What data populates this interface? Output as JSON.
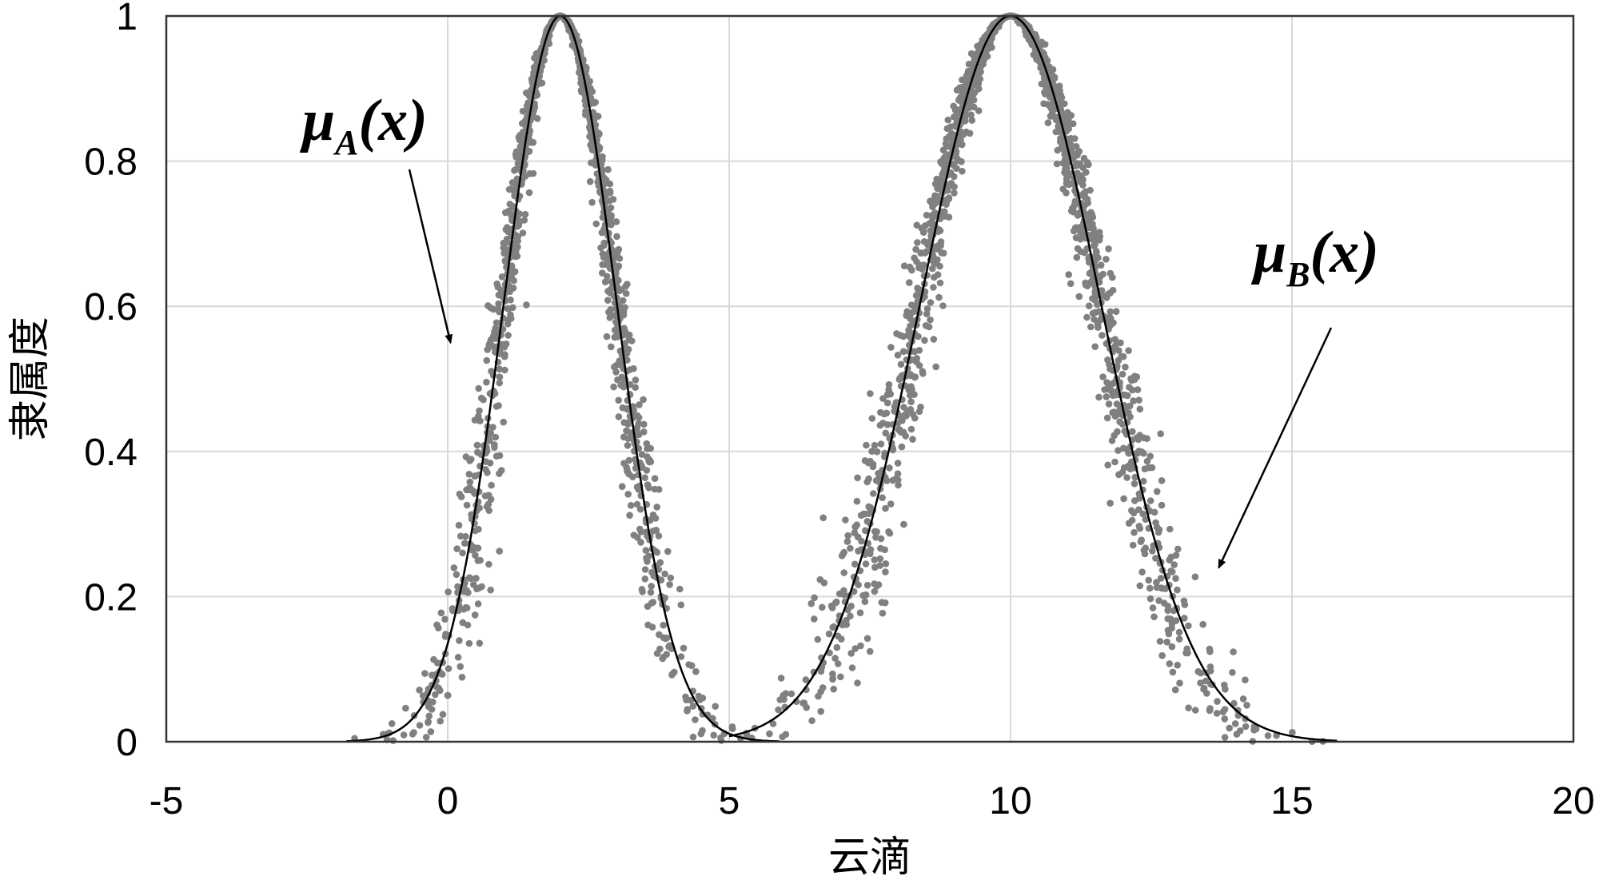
{
  "chart_data": {
    "type": "scatter",
    "title": "",
    "xlabel": "云滴",
    "ylabel": "隶属度",
    "xlim": [
      -5,
      20
    ],
    "ylim": [
      0,
      1
    ],
    "xticks": [
      "-5",
      "0",
      "5",
      "10",
      "15",
      "20"
    ],
    "yticks": [
      "0",
      "0.2",
      "0.4",
      "0.6",
      "0.8",
      "1"
    ],
    "grid": true,
    "legend": "none",
    "series": [
      {
        "kind": "gaussian",
        "Ex": 2,
        "En": 1,
        "He": 0.1,
        "n": 1500,
        "range": [
          -1.8,
          5.9
        ]
      },
      {
        "kind": "gaussian",
        "Ex": 10,
        "En": 1.6,
        "He": 0.16,
        "n": 1800,
        "range": [
          5,
          15.8
        ]
      }
    ],
    "colors": {
      "drops": "#808080",
      "curve": "#000000",
      "grid": "#d9d9d9",
      "axes": "#333333"
    },
    "annotations": [
      {
        "curve": "A",
        "mu": "μ",
        "sub": "A",
        "arg": "(x)",
        "arrow_tip": [
          0.05,
          0.55
        ]
      },
      {
        "curve": "B",
        "mu": "μ",
        "sub": "B",
        "arg": "(x)",
        "arrow_tip": [
          13.7,
          0.24
        ]
      }
    ]
  }
}
